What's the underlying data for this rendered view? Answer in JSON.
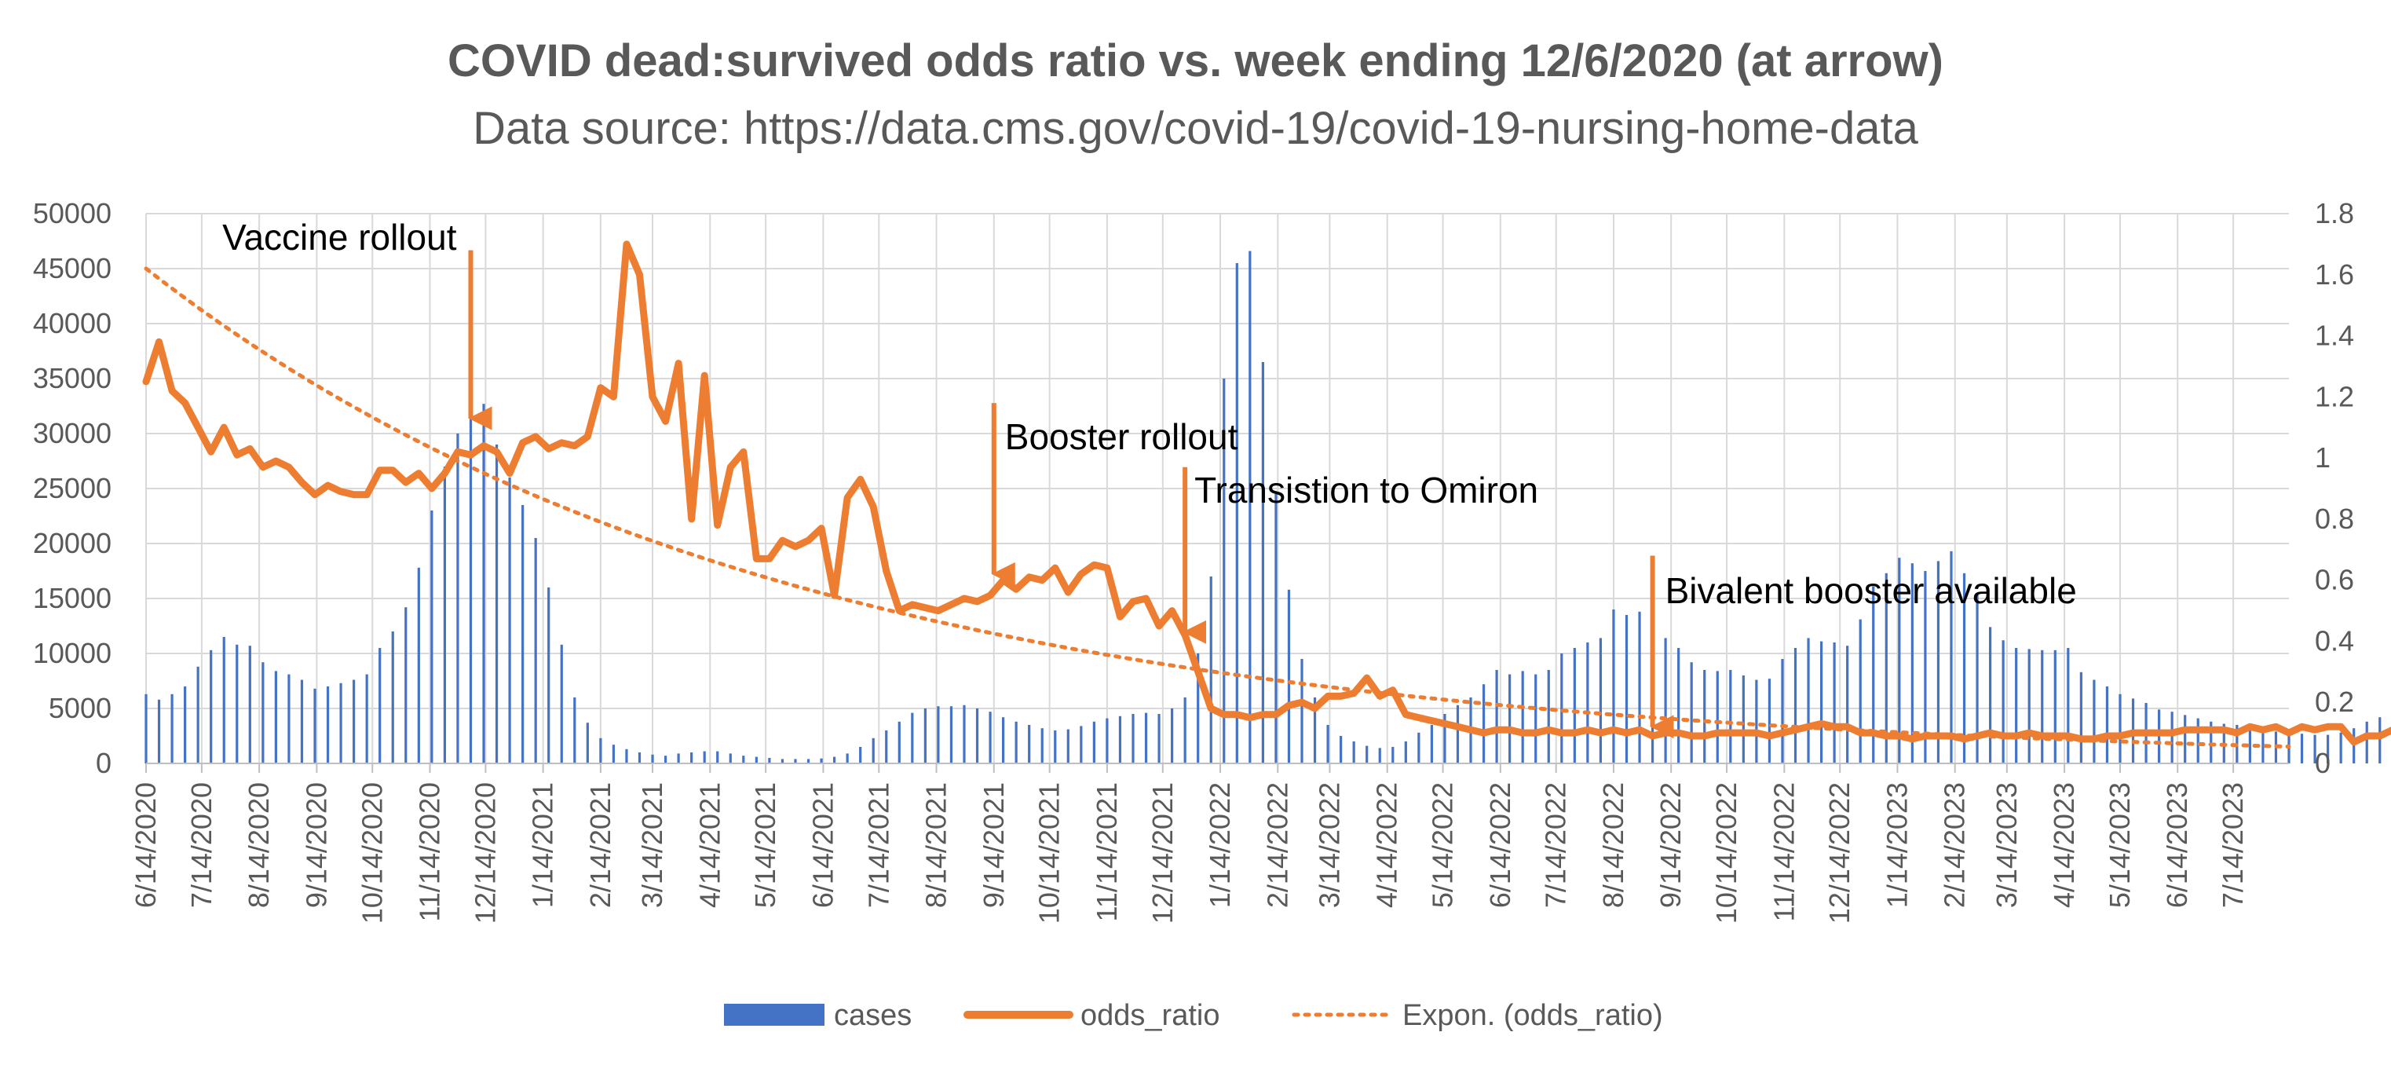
{
  "chart_data": {
    "type": "bar+line",
    "title": "COVID dead:survived odds ratio vs. week ending 12/6/2020 (at arrow)",
    "subtitle": "Data source: https://data.cms.gov/covid-19/covid-19-nursing-home-data",
    "y_left": {
      "min": 0,
      "max": 50000,
      "step": 5000,
      "ticks": [
        "0",
        "5000",
        "10000",
        "15000",
        "20000",
        "25000",
        "30000",
        "35000",
        "40000",
        "45000",
        "50000"
      ]
    },
    "y_right": {
      "min": 0,
      "max": 1.8,
      "step": 0.2,
      "ticks": [
        "0",
        "0.2",
        "0.4",
        "0.6",
        "0.8",
        "1",
        "1.2",
        "1.4",
        "1.6",
        "1.8"
      ]
    },
    "x_start": "2020-06-14",
    "x_end": "2023-08-13",
    "x_tick_labels": [
      "6/14/2020",
      "7/14/2020",
      "8/14/2020",
      "9/14/2020",
      "10/14/2020",
      "11/14/2020",
      "12/14/2020",
      "1/14/2021",
      "2/14/2021",
      "3/14/2021",
      "4/14/2021",
      "5/14/2021",
      "6/14/2021",
      "7/14/2021",
      "8/14/2021",
      "9/14/2021",
      "10/14/2021",
      "11/14/2021",
      "12/14/2021",
      "1/14/2022",
      "2/14/2022",
      "3/14/2022",
      "4/14/2022",
      "5/14/2022",
      "6/14/2022",
      "7/14/2022",
      "8/14/2022",
      "9/14/2022",
      "10/14/2022",
      "11/14/2022",
      "12/14/2022",
      "1/14/2023",
      "2/14/2023",
      "3/14/2023",
      "4/14/2023",
      "5/14/2023",
      "6/14/2023",
      "7/14/2023"
    ],
    "grid": true,
    "legend_position": "bottom",
    "series": [
      {
        "name": "cases",
        "type": "bar",
        "axis": "left",
        "color": "#4472C4",
        "values": [
          6300,
          5800,
          6300,
          7000,
          8800,
          10300,
          11500,
          10800,
          10700,
          9200,
          8400,
          8100,
          7600,
          6800,
          7000,
          7300,
          7600,
          8100,
          10500,
          12000,
          14200,
          17800,
          23000,
          27000,
          30000,
          32500,
          32700,
          29000,
          26000,
          23500,
          20500,
          16000,
          10800,
          6000,
          3700,
          2300,
          1700,
          1300,
          1000,
          800,
          700,
          900,
          1000,
          1100,
          1100,
          900,
          700,
          600,
          500,
          400,
          400,
          400,
          450,
          600,
          900,
          1500,
          2300,
          3000,
          3800,
          4600,
          5000,
          5200,
          5200,
          5300,
          5000,
          4700,
          4200,
          3800,
          3500,
          3200,
          3000,
          3100,
          3400,
          3800,
          4100,
          4300,
          4500,
          4600,
          4500,
          5000,
          6000,
          10000,
          17000,
          35000,
          45500,
          46600,
          36500,
          24500,
          15800,
          9500,
          6000,
          3500,
          2500,
          2000,
          1600,
          1400,
          1500,
          2000,
          2800,
          3500,
          4500,
          5300,
          6000,
          7200,
          8500,
          8100,
          8400,
          8100,
          8500,
          10000,
          10500,
          11000,
          11400,
          14000,
          13500,
          13800,
          13700,
          11400,
          10500,
          9200,
          8500,
          8400,
          8500,
          8000,
          7600,
          7700,
          9500,
          10500,
          11400,
          11100,
          11000,
          10700,
          13100,
          16100,
          17300,
          18700,
          18200,
          17500,
          18400,
          19300,
          17300,
          15500,
          12400,
          11200,
          10500,
          10400,
          10300,
          10300,
          10500,
          8300,
          7600,
          7000,
          6300,
          5900,
          5500,
          4900,
          4700,
          4400,
          4100,
          3800,
          3600,
          3500,
          3300,
          3100,
          2900,
          2800,
          2700,
          2600,
          2600,
          2800,
          3200,
          3800,
          4200,
          5000
        ]
      },
      {
        "name": "odds_ratio",
        "type": "line",
        "axis": "right",
        "color": "#ED7D31",
        "values": [
          1.25,
          1.38,
          1.22,
          1.18,
          1.1,
          1.02,
          1.1,
          1.01,
          1.03,
          0.97,
          0.99,
          0.97,
          0.92,
          0.88,
          0.91,
          0.89,
          0.88,
          0.88,
          0.96,
          0.96,
          0.92,
          0.95,
          0.9,
          0.95,
          1.02,
          1.01,
          1.04,
          1.02,
          0.95,
          1.05,
          1.07,
          1.03,
          1.05,
          1.04,
          1.07,
          1.23,
          1.2,
          1.7,
          1.6,
          1.2,
          1.12,
          1.31,
          0.8,
          1.27,
          0.78,
          0.97,
          1.02,
          0.67,
          0.67,
          0.73,
          0.71,
          0.73,
          0.77,
          0.55,
          0.87,
          0.93,
          0.84,
          0.63,
          0.5,
          0.52,
          0.51,
          0.5,
          0.52,
          0.54,
          0.53,
          0.55,
          0.6,
          0.57,
          0.61,
          0.6,
          0.64,
          0.56,
          0.62,
          0.65,
          0.64,
          0.48,
          0.53,
          0.54,
          0.45,
          0.5,
          0.42,
          0.3,
          0.18,
          0.16,
          0.16,
          0.15,
          0.16,
          0.16,
          0.19,
          0.2,
          0.18,
          0.22,
          0.22,
          0.23,
          0.28,
          0.22,
          0.24,
          0.16,
          0.15,
          0.14,
          0.13,
          0.12,
          0.11,
          0.1,
          0.11,
          0.11,
          0.1,
          0.1,
          0.11,
          0.1,
          0.1,
          0.11,
          0.1,
          0.11,
          0.1,
          0.11,
          0.09,
          0.1,
          0.1,
          0.09,
          0.09,
          0.1,
          0.1,
          0.1,
          0.1,
          0.09,
          0.1,
          0.11,
          0.12,
          0.13,
          0.12,
          0.12,
          0.1,
          0.1,
          0.09,
          0.09,
          0.08,
          0.09,
          0.09,
          0.09,
          0.08,
          0.09,
          0.1,
          0.09,
          0.09,
          0.1,
          0.09,
          0.09,
          0.09,
          0.08,
          0.08,
          0.09,
          0.09,
          0.1,
          0.1,
          0.1,
          0.1,
          0.11,
          0.11,
          0.11,
          0.11,
          0.1,
          0.12,
          0.11,
          0.12,
          0.1,
          0.12,
          0.11,
          0.12,
          0.12,
          0.07,
          0.09,
          0.09,
          0.11,
          0.1,
          0.07,
          0.09,
          0.08,
          0.09,
          0.1
        ]
      },
      {
        "name": "Expon. (odds_ratio)",
        "type": "trendline",
        "axis": "right",
        "color": "#ED7D31",
        "style": "dotted",
        "model": "exponential",
        "start_value": 1.62,
        "end_value": 0.055
      }
    ],
    "annotations": [
      {
        "text": "Vaccine rollout",
        "arrow_date": "2020-12-06",
        "arrow_y_start": 1.68,
        "arrow_y_end": 1.13
      },
      {
        "text": "Booster rollout",
        "arrow_date": "2021-09-14",
        "arrow_y_start": 1.18,
        "arrow_y_end": 0.62
      },
      {
        "text": "Transistion to Omiron",
        "arrow_date": "2021-12-26",
        "arrow_y_start": 0.97,
        "arrow_y_end": 0.43
      },
      {
        "text": "Bivalent booster available",
        "arrow_date": "2022-09-04",
        "arrow_y_start": 0.68,
        "arrow_y_end": 0.12
      }
    ]
  }
}
